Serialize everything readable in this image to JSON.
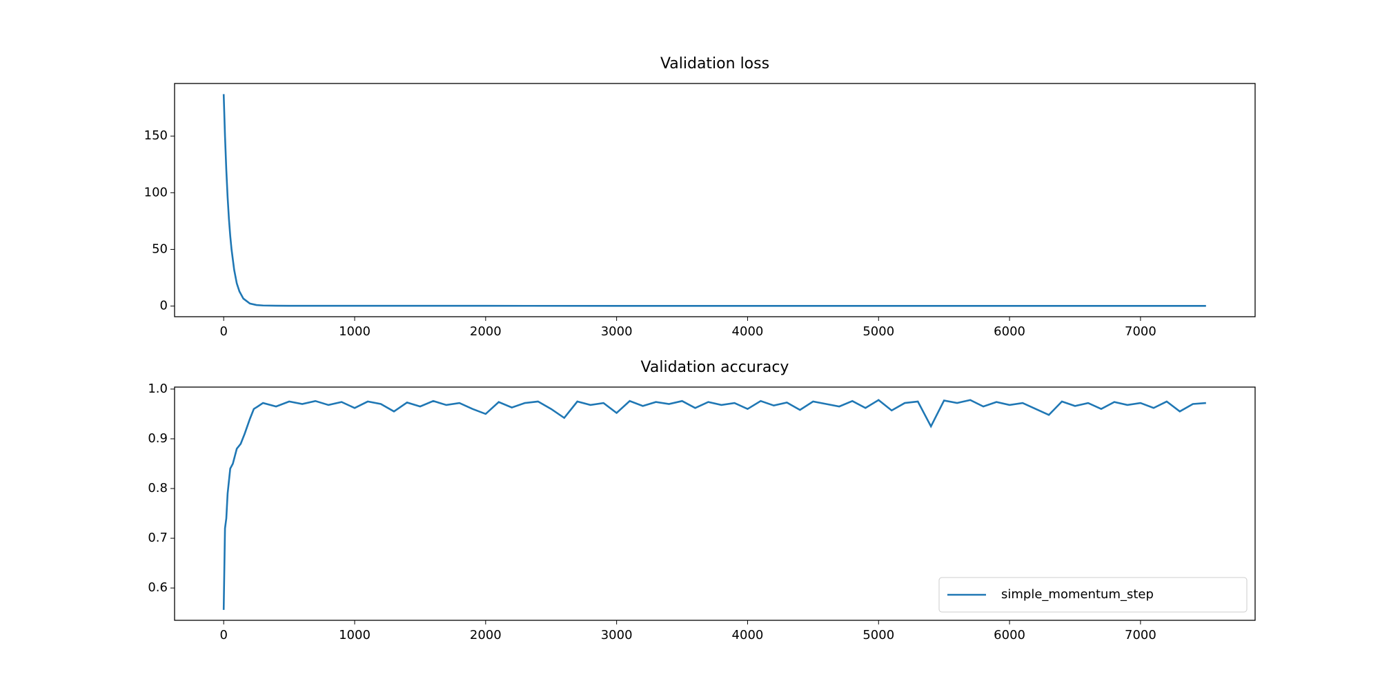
{
  "chart_data": [
    {
      "type": "line",
      "title": "Validation loss",
      "xlim": [
        -375,
        7875
      ],
      "xticks": [
        0,
        1000,
        2000,
        3000,
        4000,
        5000,
        6000,
        7000
      ],
      "ylim": [
        -9.4,
        196.4
      ],
      "yticks": [
        0,
        50,
        100,
        150
      ],
      "series": [
        {
          "color": "#1f77b4",
          "x": [
            0,
            10,
            20,
            30,
            40,
            50,
            60,
            80,
            100,
            120,
            150,
            200,
            250,
            300,
            400,
            500,
            1000,
            2000,
            3000,
            4000,
            5000,
            6000,
            7000,
            7500
          ],
          "values": [
            187,
            150,
            120,
            96,
            77,
            62,
            50,
            32,
            20,
            13,
            6.6,
            2.2,
            0.9,
            0.5,
            0.3,
            0.25,
            0.2,
            0.2,
            0.18,
            0.18,
            0.17,
            0.16,
            0.15,
            0.15
          ]
        }
      ]
    },
    {
      "type": "line",
      "title": "Validation accuracy",
      "xlim": [
        -375,
        7875
      ],
      "xticks": [
        0,
        1000,
        2000,
        3000,
        4000,
        5000,
        6000,
        7000
      ],
      "ylim": [
        0.535,
        1.004
      ],
      "yticks": [
        0.6,
        0.7,
        0.8,
        0.9,
        {
          "value": 1.0,
          "label": "1.0"
        }
      ],
      "legend": "lower right",
      "series": [
        {
          "name": "simple_momentum_step",
          "color": "#1f77b4",
          "x": [
            0,
            10,
            20,
            30,
            50,
            70,
            100,
            130,
            160,
            200,
            230,
            260,
            300,
            400,
            500,
            600,
            700,
            800,
            900,
            1000,
            1100,
            1200,
            1300,
            1400,
            1500,
            1600,
            1700,
            1800,
            1900,
            2000,
            2100,
            2200,
            2300,
            2400,
            2500,
            2600,
            2700,
            2800,
            2900,
            3000,
            3100,
            3200,
            3300,
            3400,
            3500,
            3600,
            3700,
            3800,
            3900,
            4000,
            4100,
            4200,
            4300,
            4400,
            4500,
            4600,
            4700,
            4800,
            4900,
            5000,
            5100,
            5200,
            5300,
            5400,
            5500,
            5600,
            5700,
            5800,
            5900,
            6000,
            6100,
            6200,
            6300,
            6400,
            6500,
            6600,
            6700,
            6800,
            6900,
            7000,
            7100,
            7200,
            7300,
            7400,
            7500
          ],
          "values": [
            0.556,
            0.72,
            0.74,
            0.79,
            0.84,
            0.85,
            0.88,
            0.89,
            0.91,
            0.94,
            0.96,
            0.965,
            0.972,
            0.965,
            0.975,
            0.97,
            0.976,
            0.968,
            0.974,
            0.962,
            0.975,
            0.97,
            0.955,
            0.973,
            0.965,
            0.976,
            0.968,
            0.972,
            0.96,
            0.95,
            0.974,
            0.963,
            0.972,
            0.975,
            0.96,
            0.942,
            0.975,
            0.968,
            0.972,
            0.952,
            0.976,
            0.966,
            0.974,
            0.97,
            0.976,
            0.962,
            0.974,
            0.968,
            0.972,
            0.96,
            0.976,
            0.967,
            0.973,
            0.958,
            0.975,
            0.97,
            0.965,
            0.976,
            0.962,
            0.978,
            0.957,
            0.972,
            0.975,
            0.925,
            0.977,
            0.972,
            0.978,
            0.965,
            0.974,
            0.968,
            0.972,
            0.96,
            0.948,
            0.975,
            0.966,
            0.972,
            0.96,
            0.974,
            0.968,
            0.972,
            0.962,
            0.975,
            0.955,
            0.97,
            0.972
          ]
        }
      ]
    }
  ]
}
